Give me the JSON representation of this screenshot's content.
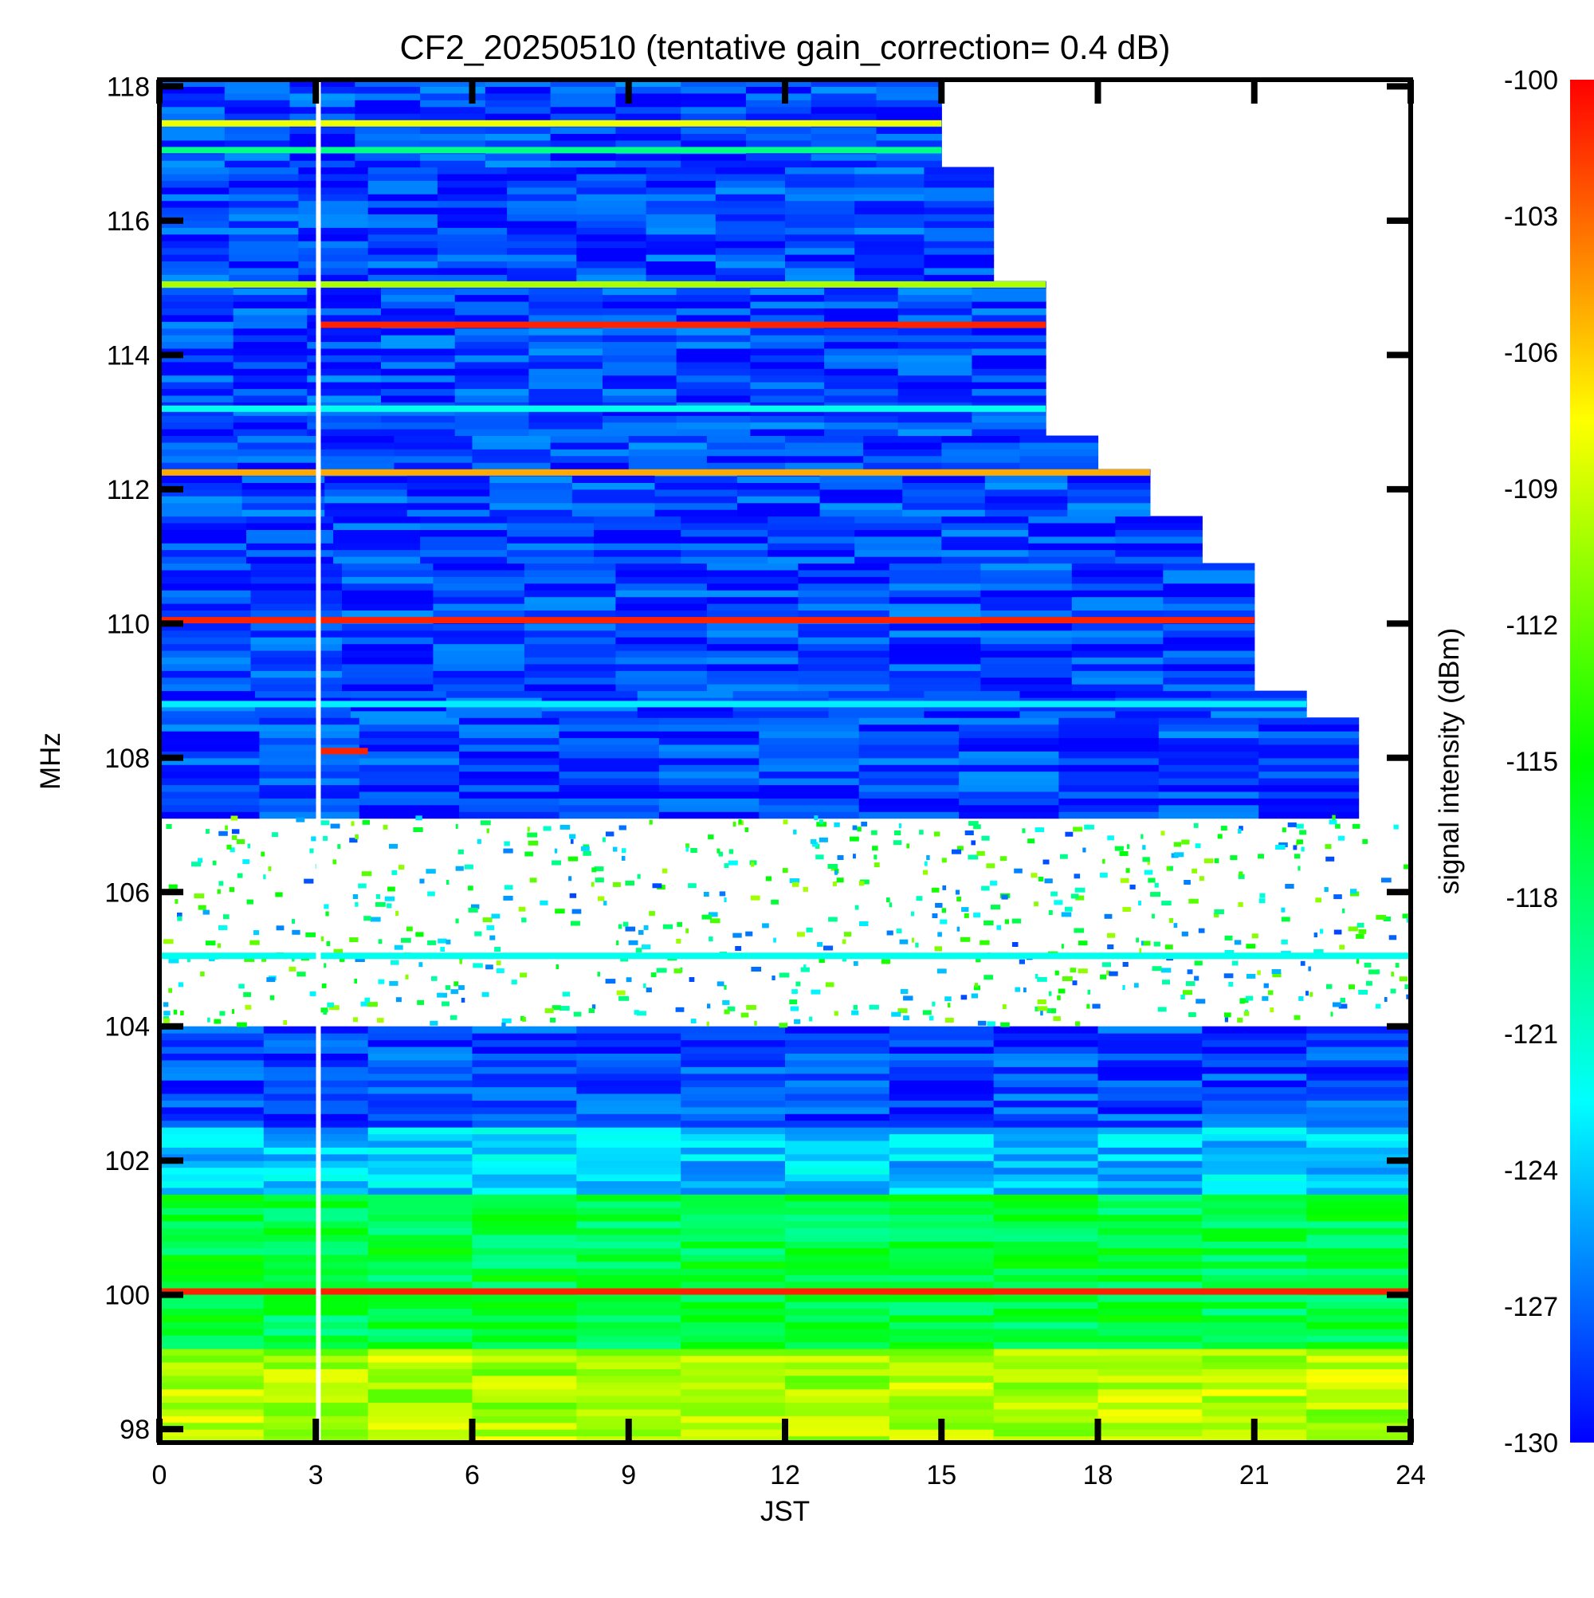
{
  "chart_data": {
    "type": "heatmap",
    "title": "CF2_20250510 (tentative gain_correction=  0.4 dB)",
    "xlabel": "JST",
    "ylabel": "MHz",
    "colorbar_label": "signal intensity (dBm)",
    "xlim": [
      0,
      24
    ],
    "ylim": [
      97.8,
      118.1
    ],
    "x_ticks": [
      0,
      3,
      6,
      9,
      12,
      15,
      18,
      21,
      24
    ],
    "y_ticks": [
      98,
      100,
      102,
      104,
      106,
      108,
      110,
      112,
      114,
      116,
      118
    ],
    "colorbar_range": [
      -130,
      -100
    ],
    "colorbar_ticks": [
      -100,
      -103,
      -106,
      -109,
      -112,
      -115,
      -118,
      -121,
      -124,
      -127,
      -130
    ],
    "colormap": [
      "#0000ff",
      "#00ffff",
      "#00ff00",
      "#ffff00",
      "#ff0000"
    ],
    "data_gap_time": 3.05,
    "coverage_end_by_freq": [
      {
        "freq_min": 117.9,
        "freq_max": 118.1,
        "end_time": 15.0
      },
      {
        "freq_min": 116.8,
        "freq_max": 117.9,
        "end_time": 15.0
      },
      {
        "freq_min": 115.1,
        "freq_max": 116.8,
        "end_time": 16.0
      },
      {
        "freq_min": 112.8,
        "freq_max": 115.1,
        "end_time": 17.0
      },
      {
        "freq_min": 112.3,
        "freq_max": 112.8,
        "end_time": 18.0
      },
      {
        "freq_min": 111.6,
        "freq_max": 112.3,
        "end_time": 19.0
      },
      {
        "freq_min": 110.9,
        "freq_max": 111.6,
        "end_time": 20.0
      },
      {
        "freq_min": 109.0,
        "freq_max": 110.9,
        "end_time": 21.0
      },
      {
        "freq_min": 108.6,
        "freq_max": 109.0,
        "end_time": 22.0
      },
      {
        "freq_min": 106.8,
        "freq_max": 108.6,
        "end_time": 23.0
      },
      {
        "freq_min": 97.8,
        "freq_max": 106.8,
        "end_time": 24.0
      }
    ],
    "frequency_bands": [
      {
        "freq_min": 97.8,
        "freq_max": 99.2,
        "dbm": -110
      },
      {
        "freq_min": 99.2,
        "freq_max": 101.5,
        "dbm": -117
      },
      {
        "freq_min": 101.5,
        "freq_max": 102.5,
        "dbm": -124
      },
      {
        "freq_min": 102.5,
        "freq_max": 104.0,
        "dbm": -128
      },
      {
        "freq_min": 107.1,
        "freq_max": 118.1,
        "dbm": -128
      }
    ],
    "strong_signals": [
      {
        "freq": 117.45,
        "dbm": -108
      },
      {
        "freq": 117.05,
        "dbm": -119
      },
      {
        "freq": 115.05,
        "dbm": -110
      },
      {
        "freq": 114.45,
        "dbm": -101,
        "start_time": 3.05
      },
      {
        "freq": 113.2,
        "dbm": -122
      },
      {
        "freq": 112.25,
        "dbm": -105
      },
      {
        "freq": 110.05,
        "dbm": -101
      },
      {
        "freq": 108.8,
        "dbm": -123
      },
      {
        "freq": 108.1,
        "dbm": -101,
        "start_time": 3.05,
        "end_time": 4.0
      },
      {
        "freq": 105.05,
        "dbm": -122
      },
      {
        "freq": 100.05,
        "dbm": -101
      }
    ]
  }
}
